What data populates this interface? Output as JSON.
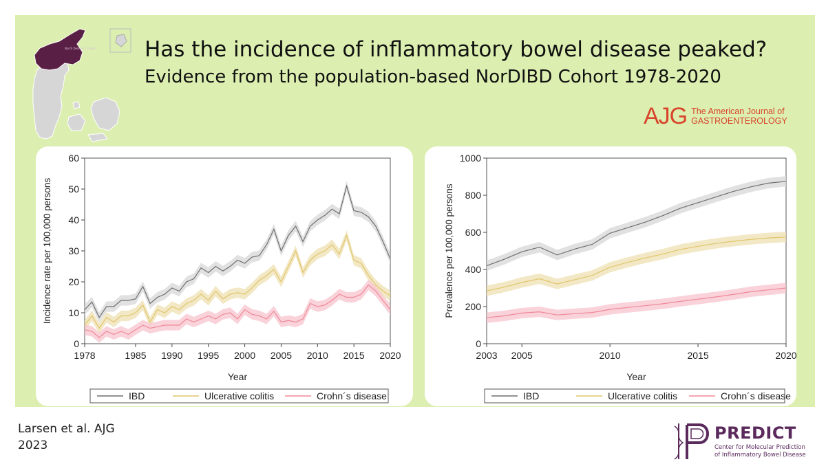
{
  "title": "Has the incidence of inflammatory bowel disease peaked?",
  "subtitle": "Evidence from the population-based NorDIBD Cohort 1978-2020",
  "journal": {
    "mark": "AJG",
    "line1": "The American Journal of",
    "line2": "GASTROENTEROLOGY"
  },
  "citation": {
    "line1": "Larsen et al. AJG",
    "line2": "2023"
  },
  "predict": {
    "name": "PREDICT",
    "sub1": "Center for Molecular Prediction",
    "sub2": "of Inflammatory Bowel Disease"
  },
  "map": {
    "region_label": "North Denmark Region",
    "highlight_color": "#5a1f45"
  },
  "colors": {
    "IBD": "#6f6f6f",
    "Ulcerative colitis": "#e0c56a",
    "Crohn´s disease": "#f08898",
    "IBD_band": "#d7d7d7",
    "UC_band": "#efe0b2",
    "CD_band": "#f7c3cd"
  },
  "chart_data": [
    {
      "type": "line",
      "xlabel": "Year",
      "ylabel": "Incidence rate per 100,000 persons",
      "xlim": [
        1978,
        2020
      ],
      "ylim": [
        0,
        60
      ],
      "xticks": [
        1978,
        1985,
        1990,
        1995,
        2000,
        2005,
        2010,
        2015,
        2020
      ],
      "yticks": [
        0,
        10,
        20,
        30,
        40,
        50,
        60
      ],
      "legend": "bottom",
      "x": [
        1978,
        1979,
        1980,
        1981,
        1982,
        1983,
        1984,
        1985,
        1986,
        1987,
        1988,
        1989,
        1990,
        1991,
        1992,
        1993,
        1994,
        1995,
        1996,
        1997,
        1998,
        1999,
        2000,
        2001,
        2002,
        2003,
        2004,
        2005,
        2006,
        2007,
        2008,
        2009,
        2010,
        2011,
        2012,
        2013,
        2014,
        2015,
        2016,
        2017,
        2018,
        2019,
        2020
      ],
      "series": [
        {
          "name": "IBD",
          "values": [
            11,
            13.5,
            8.5,
            12,
            12,
            14,
            14,
            14.5,
            18.5,
            13,
            15,
            16,
            18,
            17,
            20,
            21,
            24.5,
            23,
            25,
            23.5,
            25,
            27,
            26,
            28,
            28.5,
            32,
            37,
            30,
            35,
            38,
            33,
            38,
            40,
            41.5,
            43.5,
            42,
            51,
            43,
            42.5,
            41,
            38,
            33,
            27.5
          ]
        },
        {
          "name": "Ulcerative colitis",
          "values": [
            6,
            9,
            5,
            8.5,
            7,
            9,
            9,
            10,
            12.5,
            7,
            11,
            10,
            12,
            11,
            13,
            14,
            16,
            14,
            17,
            14.5,
            16,
            16.5,
            16,
            18,
            20.5,
            22,
            24,
            20,
            25,
            30,
            23,
            27,
            29,
            30,
            32,
            29,
            35,
            27,
            26,
            22,
            19,
            17,
            15.5
          ]
        },
        {
          "name": "Crohn´s disease",
          "values": [
            4.5,
            4,
            2,
            4,
            3,
            4,
            3,
            4.5,
            6,
            5,
            5.5,
            6,
            6,
            6,
            8,
            7,
            8,
            9,
            8,
            9.5,
            10,
            8,
            11,
            9.5,
            9,
            8,
            10.5,
            7,
            7.5,
            7,
            8,
            13,
            12,
            12.5,
            14,
            16,
            15,
            15,
            16,
            19,
            17,
            14,
            11
          ]
        }
      ]
    },
    {
      "type": "line",
      "xlabel": "Year",
      "ylabel": "Prevalence per 100,000 persons",
      "xlim": [
        2003,
        2020
      ],
      "ylim": [
        0,
        1000
      ],
      "xticks": [
        2003,
        2005,
        2010,
        2015,
        2020
      ],
      "yticks": [
        0,
        200,
        400,
        600,
        800,
        1000
      ],
      "legend": "bottom",
      "x": [
        2003,
        2004,
        2005,
        2006,
        2007,
        2008,
        2009,
        2010,
        2011,
        2012,
        2013,
        2014,
        2015,
        2016,
        2017,
        2018,
        2019,
        2020
      ],
      "series": [
        {
          "name": "IBD",
          "values": [
            420,
            455,
            495,
            520,
            478,
            510,
            535,
            595,
            625,
            655,
            690,
            730,
            760,
            790,
            820,
            845,
            865,
            875
          ]
        },
        {
          "name": "Ulcerative colitis",
          "values": [
            285,
            305,
            330,
            350,
            322,
            345,
            368,
            412,
            438,
            462,
            483,
            508,
            525,
            540,
            552,
            562,
            570,
            575
          ]
        },
        {
          "name": "Crohn´s disease",
          "values": [
            140,
            150,
            165,
            172,
            155,
            162,
            168,
            185,
            195,
            205,
            215,
            228,
            240,
            252,
            265,
            280,
            290,
            300
          ]
        }
      ]
    }
  ]
}
